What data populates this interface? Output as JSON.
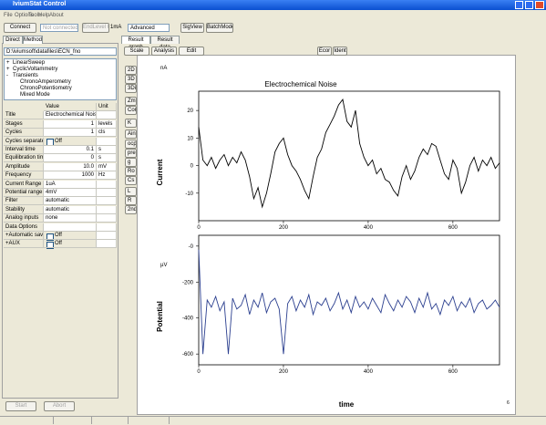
{
  "window": {
    "title": "IviumStat Control"
  },
  "menu": [
    "File",
    "Options",
    "Tools",
    "Help",
    "About"
  ],
  "toolbar": {
    "connect": "Connect",
    "status": "Not connected",
    "endlevel": "EndLevel Con",
    "range": "1mA",
    "mode": "Advanced",
    "sigview": "SigView",
    "batch": "BatchMode"
  },
  "left_tabs": [
    "Direct",
    "Method"
  ],
  "method_file": "D:\\iviumsoft\\datafiles\\ECN_fno",
  "tree": [
    {
      "sign": "+",
      "label": "LinearSweep"
    },
    {
      "sign": "+",
      "label": "CyclicVoltammetry"
    },
    {
      "sign": "-",
      "label": "Transients"
    },
    {
      "label": "ChronoAmperometry"
    },
    {
      "label": "ChronoPotentiometry"
    },
    {
      "label": "Mixed Mode"
    }
  ],
  "params": {
    "headers": [
      "Value",
      "Unit"
    ],
    "rows": [
      {
        "name": "Title",
        "value": "Electrochemical Noise"
      },
      {
        "name": "Stages",
        "value": "1",
        "unit": "levels"
      },
      {
        "name": "Cycles",
        "value": "1",
        "unit": "cls"
      },
      {
        "name": "Cycles separate",
        "value": "Off",
        "checkbox": true
      },
      {
        "name": "Interval time",
        "value": "0.1",
        "unit": "s"
      },
      {
        "name": "Equilibration time",
        "value": "0",
        "unit": "s"
      },
      {
        "name": "Amplitude",
        "value": "10.0",
        "unit": "mV"
      },
      {
        "name": "Frequency",
        "value": "1000",
        "unit": "Hz"
      },
      {
        "name": "Current Range",
        "value": "1uA"
      },
      {
        "name": "Potential range",
        "value": "4mV"
      },
      {
        "name": "Filter",
        "value": "automatic"
      },
      {
        "name": "Stability",
        "value": "automatic"
      },
      {
        "name": "Analog inputs",
        "value": "none"
      },
      {
        "name": "Data Options"
      },
      {
        "name": "+Automatic save",
        "value": "Off",
        "checkbox": true
      },
      {
        "name": "+AUX",
        "value": "Off",
        "checkbox": true
      }
    ]
  },
  "buttons": [
    "Start",
    "Abort"
  ],
  "right_tabs": [
    "Result graph",
    "Result data"
  ],
  "graph_menu": [
    "Scale",
    "Analysis",
    "Edit"
  ],
  "graph_buttons": [
    "Ecor",
    "Ident"
  ],
  "side_buttons": [
    "2D",
    "3D",
    "3Di",
    "Zm",
    "Cor",
    "K",
    "Ain",
    "ocp",
    "pre",
    "g",
    "Ro",
    "Cs",
    "L",
    "R",
    "2nd"
  ],
  "page_number": "6",
  "chart_data": [
    {
      "type": "line",
      "title": "Electrochemical Noise",
      "y_unit": "nA",
      "ylabel": "Current",
      "color": "#000000",
      "xlim": [
        0,
        710
      ],
      "xticks": [
        0,
        200,
        400,
        600
      ],
      "ylim": [
        -20,
        27
      ],
      "yticks": [
        20,
        10,
        0,
        -10
      ],
      "x": [
        0,
        10,
        20,
        30,
        40,
        50,
        60,
        70,
        80,
        90,
        100,
        110,
        120,
        130,
        140,
        150,
        160,
        170,
        180,
        190,
        200,
        210,
        220,
        230,
        240,
        250,
        260,
        270,
        280,
        290,
        300,
        310,
        320,
        330,
        340,
        350,
        360,
        370,
        380,
        390,
        400,
        410,
        420,
        430,
        440,
        450,
        460,
        470,
        480,
        490,
        500,
        510,
        520,
        530,
        540,
        550,
        560,
        570,
        580,
        590,
        600,
        610,
        620,
        630,
        640,
        650,
        660,
        670,
        680,
        690,
        700,
        710
      ],
      "values": [
        14,
        2,
        0,
        3,
        -1,
        2,
        4,
        0,
        3,
        1,
        5,
        2,
        -4,
        -12,
        -8,
        -15,
        -10,
        -3,
        5,
        8,
        10,
        4,
        0,
        -2,
        -5,
        -9,
        -12,
        -4,
        3,
        6,
        12,
        15,
        18,
        22,
        24,
        16,
        14,
        20,
        8,
        3,
        0,
        2,
        -3,
        -1,
        -5,
        -6,
        -9,
        -11,
        -4,
        0,
        -5,
        -2,
        3,
        6,
        4,
        8,
        7,
        2,
        -3,
        -5,
        2,
        -1,
        -10,
        -6,
        0,
        3,
        -2,
        2,
        0,
        3,
        -1,
        1
      ]
    },
    {
      "type": "line",
      "y_unit": "µV",
      "ylabel": "Potential",
      "xlabel": "time",
      "color": "#2b3f8f",
      "xlim": [
        0,
        710
      ],
      "xticks": [
        0,
        200,
        400,
        600
      ],
      "ylim": [
        -660,
        60
      ],
      "yticks": [
        {
          "value": 0,
          "label": "-0"
        },
        -200,
        -400,
        -600
      ],
      "x": [
        0,
        10,
        20,
        30,
        40,
        50,
        60,
        70,
        80,
        90,
        100,
        110,
        120,
        130,
        140,
        150,
        160,
        170,
        180,
        190,
        200,
        210,
        220,
        230,
        240,
        250,
        260,
        270,
        280,
        290,
        300,
        310,
        320,
        330,
        340,
        350,
        360,
        370,
        380,
        390,
        400,
        410,
        420,
        430,
        440,
        450,
        460,
        470,
        480,
        490,
        500,
        510,
        520,
        530,
        540,
        550,
        560,
        570,
        580,
        590,
        600,
        610,
        620,
        630,
        640,
        650,
        660,
        670,
        680,
        690,
        700,
        710
      ],
      "values": [
        -20,
        -600,
        -300,
        -340,
        -280,
        -360,
        -310,
        -600,
        -290,
        -350,
        -330,
        -270,
        -380,
        -300,
        -340,
        -260,
        -370,
        -310,
        -290,
        -350,
        -600,
        -320,
        -280,
        -360,
        -300,
        -340,
        -270,
        -380,
        -310,
        -330,
        -290,
        -360,
        -320,
        -260,
        -350,
        -300,
        -370,
        -280,
        -340,
        -310,
        -350,
        -290,
        -330,
        -370,
        -270,
        -320,
        -360,
        -300,
        -340,
        -280,
        -310,
        -370,
        -290,
        -340,
        -260,
        -350,
        -320,
        -380,
        -300,
        -330,
        -280,
        -360,
        -310,
        -340,
        -290,
        -370,
        -320,
        -300,
        -350,
        -330,
        -300,
        -340
      ]
    }
  ]
}
